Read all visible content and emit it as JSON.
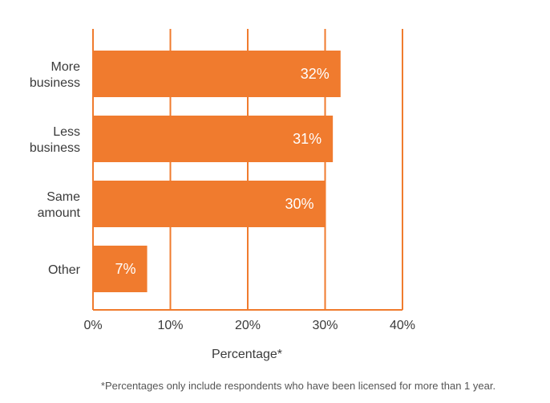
{
  "chart_data": {
    "type": "bar",
    "orientation": "horizontal",
    "categories": [
      [
        "More",
        "business"
      ],
      [
        "Less",
        "business"
      ],
      [
        "Same",
        "amount"
      ],
      [
        "Other"
      ]
    ],
    "values": [
      32,
      31,
      30,
      7
    ],
    "value_labels": [
      "32%",
      "31%",
      "30%",
      "7%"
    ],
    "xlim": [
      0,
      40
    ],
    "xticks": [
      0,
      10,
      20,
      30,
      40
    ],
    "xtick_labels": [
      "0%",
      "10%",
      "20%",
      "30%",
      "40%"
    ],
    "xlabel": "Percentage*",
    "ylabel": "",
    "title": "",
    "footnote": "*Percentages only include respondents who have been licensed for more than 1 year.",
    "grid": "vertical",
    "colors": {
      "bar": "#f07b2e",
      "grid": "#f07b2e",
      "value_text": "#ffffff",
      "label_text": "#3a3a3a"
    }
  }
}
